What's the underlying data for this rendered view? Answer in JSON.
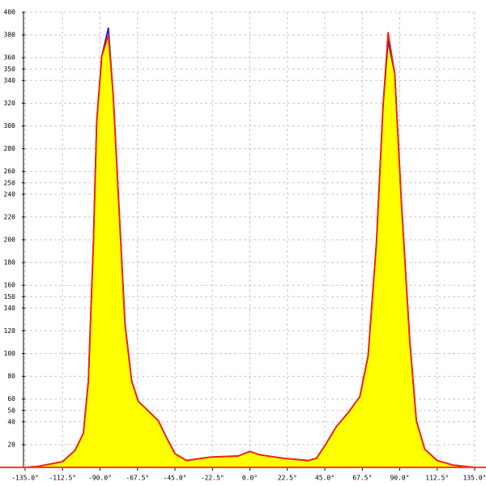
{
  "chart_data": {
    "type": "area",
    "x": [
      -135,
      -127,
      -112.5,
      -105,
      -100,
      -97,
      -94,
      -92,
      -89,
      -85,
      -82,
      -78,
      -75,
      -71,
      -67,
      -62,
      -55,
      -50,
      -45,
      -38,
      -24,
      -7,
      0,
      6,
      20,
      35,
      40,
      45,
      52,
      59,
      66,
      71,
      76,
      80,
      83,
      87,
      91,
      96,
      100,
      105,
      112.5,
      122,
      135
    ],
    "series": [
      {
        "color": "#2020e0",
        "values": [
          0,
          1,
          5,
          15,
          30,
          76,
          197,
          304,
          361,
          386,
          325,
          211,
          126,
          76,
          58,
          51,
          41,
          26,
          12,
          6,
          9,
          10,
          14,
          11,
          8,
          6,
          8,
          19,
          36,
          48,
          62,
          98,
          197,
          318,
          375,
          346,
          233,
          112,
          41,
          16,
          6,
          2,
          0
        ]
      },
      {
        "color": "#ff2000",
        "fill": "#ffff00",
        "values": [
          0,
          1,
          5,
          15,
          30,
          76,
          197,
          304,
          361,
          380,
          325,
          211,
          126,
          76,
          58,
          51,
          41,
          26,
          12,
          6,
          9,
          10,
          14,
          11,
          8,
          6,
          8,
          19,
          36,
          48,
          62,
          98,
          197,
          318,
          382,
          346,
          233,
          112,
          41,
          16,
          6,
          2,
          0
        ]
      }
    ],
    "xlim": [
      -135,
      135
    ],
    "xticks": [
      {
        "value": -135,
        "label": "-135.0°"
      },
      {
        "value": -112.5,
        "label": "-112.5°"
      },
      {
        "value": -90,
        "label": "-90.0°"
      },
      {
        "value": -67.5,
        "label": "-67.5°"
      },
      {
        "value": -45,
        "label": "-45.0°"
      },
      {
        "value": -22.5,
        "label": "-22.5°"
      },
      {
        "value": 0,
        "label": "0.0°"
      },
      {
        "value": 22.5,
        "label": "22.5°"
      },
      {
        "value": 45,
        "label": "45.0°"
      },
      {
        "value": 67.5,
        "label": "67.5°"
      },
      {
        "value": 90,
        "label": "90.0°"
      },
      {
        "value": 112.5,
        "label": "112.5°"
      },
      {
        "value": 135,
        "label": "135.0°"
      }
    ],
    "ylim": [
      0,
      400
    ],
    "yticks": [
      20,
      40,
      50,
      60,
      80,
      100,
      120,
      140,
      150,
      160,
      180,
      200,
      220,
      240,
      250,
      260,
      280,
      300,
      320,
      340,
      350,
      360,
      380,
      400
    ],
    "grid": true
  }
}
